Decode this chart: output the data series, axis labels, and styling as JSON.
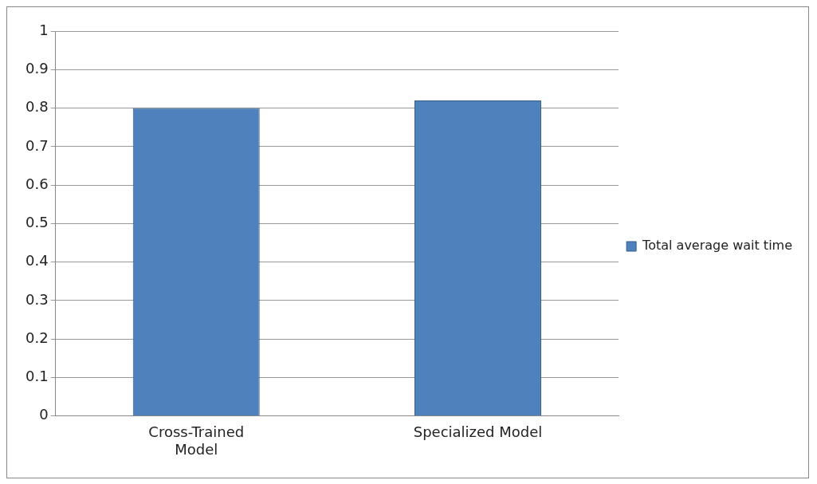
{
  "chart_data": {
    "type": "bar",
    "categories": [
      "Cross-Trained Model",
      "Specialized Model"
    ],
    "series": [
      {
        "name": "Total average wait time",
        "color": "#4f81bd",
        "values": [
          0.8,
          0.82
        ]
      }
    ],
    "ylim": [
      0,
      1
    ],
    "yticks": [
      0,
      0.1,
      0.2,
      0.3,
      0.4,
      0.5,
      0.6,
      0.7,
      0.8,
      0.9,
      1
    ],
    "grid": "y",
    "legend": "right"
  }
}
